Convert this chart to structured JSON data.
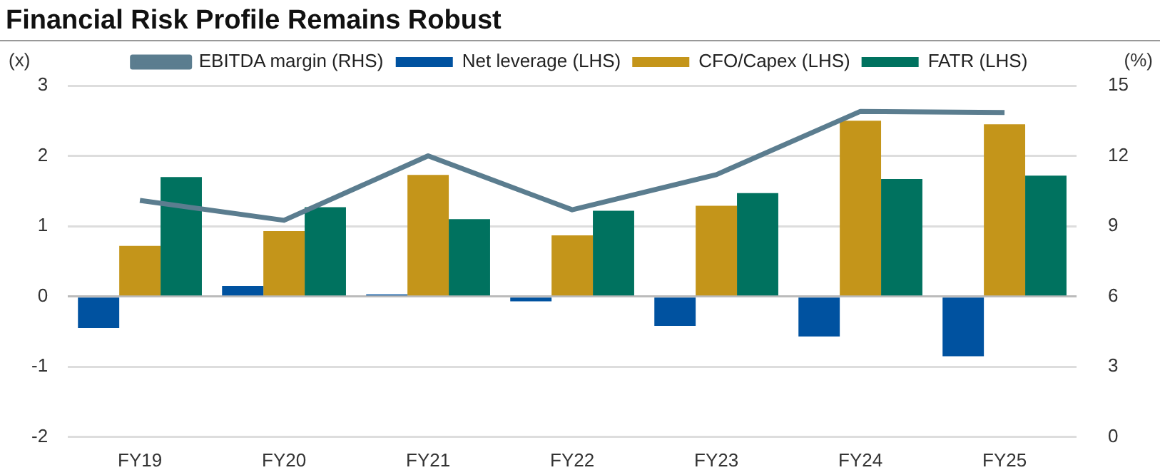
{
  "chart_data": {
    "type": "bar",
    "title": "Financial Risk Profile Remains Robust",
    "ylabel": "(x)",
    "y2label": "(%)",
    "categories": [
      "FY19",
      "FY20",
      "FY21",
      "FY22",
      "FY23",
      "FY24",
      "FY25"
    ],
    "series": [
      {
        "name": "Net leverage (LHS)",
        "color": "#0052a0",
        "values": [
          -0.45,
          0.15,
          0.03,
          -0.07,
          -0.42,
          -0.57,
          -0.85
        ]
      },
      {
        "name": "CFO/Capex (LHS)",
        "color": "#c4951a",
        "values": [
          0.72,
          0.93,
          1.73,
          0.87,
          1.29,
          2.5,
          2.45
        ]
      },
      {
        "name": "FATR (LHS)",
        "color": "#00725f",
        "values": [
          1.7,
          1.27,
          1.1,
          1.22,
          1.47,
          1.67,
          1.72
        ]
      },
      {
        "name": "EBITDA margin (RHS)",
        "color": "#5b7d8f",
        "type": "line",
        "axis": "y2",
        "values": [
          10.1,
          9.25,
          12.0,
          9.7,
          11.2,
          13.9,
          13.85
        ]
      }
    ],
    "ylim": [
      -2,
      3
    ],
    "yticks": [
      -2,
      -1,
      0,
      1,
      2,
      3
    ],
    "y2lim": [
      0,
      15
    ],
    "y2ticks": [
      0,
      3,
      6,
      9,
      12,
      15
    ],
    "grid": "y",
    "legend": "top",
    "marker": "none"
  }
}
